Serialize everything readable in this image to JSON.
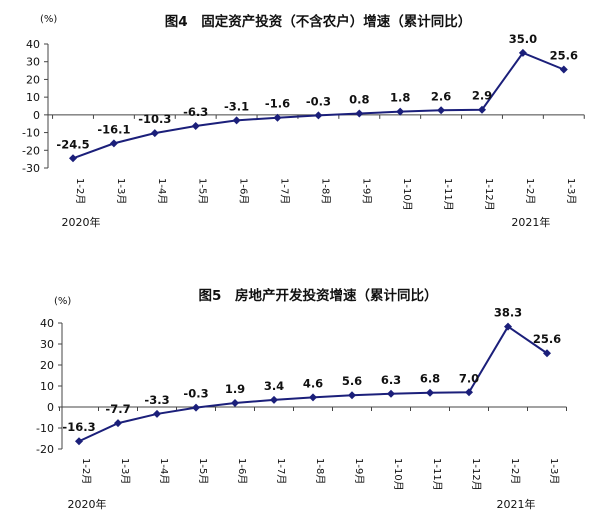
{
  "chart_data": [
    {
      "type": "line",
      "title": "图4　固定资产投资（不含农户）增速（累计同比）",
      "unit": "(%)",
      "ylim": [
        -30,
        40
      ],
      "yticks": [
        40,
        30,
        20,
        10,
        0,
        -10,
        -20,
        -30
      ],
      "categories": [
        "1-2月",
        "1-3月",
        "1-4月",
        "1-5月",
        "1-6月",
        "1-7月",
        "1-8月",
        "1-9月",
        "1-10月",
        "1-11月",
        "1-12月",
        "1-2月",
        "1-3月"
      ],
      "years": [
        {
          "label": "2020年",
          "index": 0
        },
        {
          "label": "2021年",
          "index": 11
        }
      ],
      "values": [
        -24.5,
        -16.1,
        -10.3,
        -6.3,
        -3.1,
        -1.6,
        -0.3,
        0.8,
        1.8,
        2.6,
        2.9,
        35.0,
        25.6
      ],
      "value_labels": [
        "-24.5",
        "-16.1",
        "-10.3",
        "-6.3",
        "-3.1",
        "-1.6",
        "-0.3",
        "0.8",
        "1.8",
        "2.6",
        "2.9",
        "35.0",
        "25.6"
      ],
      "color": "#1b1f7a",
      "grid": false
    },
    {
      "type": "line",
      "title": "图5　房地产开发投资增速（累计同比）",
      "unit": "(%)",
      "ylim": [
        -20,
        40
      ],
      "yticks": [
        40,
        30,
        20,
        10,
        0,
        -10,
        -20
      ],
      "categories": [
        "1-2月",
        "1-3月",
        "1-4月",
        "1-5月",
        "1-6月",
        "1-7月",
        "1-8月",
        "1-9月",
        "1-10月",
        "1-11月",
        "1-12月",
        "1-2月",
        "1-3月"
      ],
      "years": [
        {
          "label": "2020年",
          "index": 0
        },
        {
          "label": "2021年",
          "index": 11
        }
      ],
      "values": [
        -16.3,
        -7.7,
        -3.3,
        -0.3,
        1.9,
        3.4,
        4.6,
        5.6,
        6.3,
        6.8,
        7.0,
        38.3,
        25.6
      ],
      "value_labels": [
        "-16.3",
        "-7.7",
        "-3.3",
        "-0.3",
        "1.9",
        "3.4",
        "4.6",
        "5.6",
        "6.3",
        "6.8",
        "7.0",
        "38.3",
        "25.6"
      ],
      "color": "#1b1f7a",
      "grid": false
    }
  ]
}
